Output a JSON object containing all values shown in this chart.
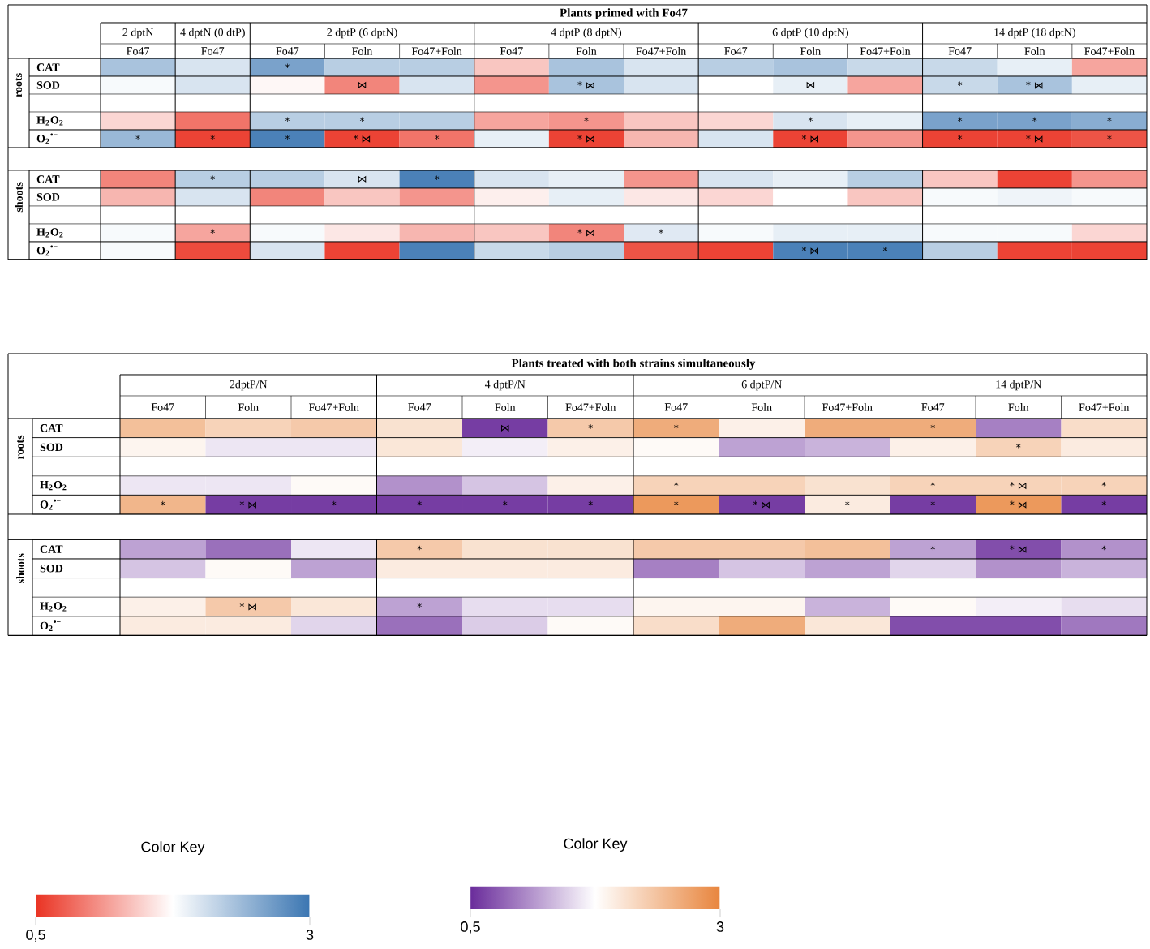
{
  "chart_data": [
    {
      "type": "heatmap",
      "title": "Plants primed with Fo47",
      "annotations": [
        "2 dptN",
        "4 dptN (0 dtP)",
        "2 dptP (6 dptN)",
        "4 dptP (8 dptN)",
        "6 dptP (10 dptN)",
        "14 dptP (18 dptN)"
      ],
      "categories": [
        "Fo47",
        "Fo47",
        "Fo47",
        "Foln",
        "Fo47+Foln",
        "Fo47",
        "Foln",
        "Fo47+Foln",
        "Fo47",
        "Foln",
        "Fo47+Foln",
        "Fo47",
        "Foln",
        "Fo47+Foln"
      ],
      "y_categories": [
        "CAT",
        "SOD",
        "H$_{2}$O$_{2}$",
        "O$_{2}$$^{•−}$",
        "CAT",
        "SOD",
        "H$_{2}$O$_{2}$",
        "O$_{2}$$^{•−}$"
      ],
      "y2_categories": [
        null,
        "roots",
        null,
        null,
        null,
        "shoots",
        null,
        null
      ],
      "cells": [
        [
          2.3,
          2.0,
          2.6,
          2.2,
          2.2,
          1.4,
          2.3,
          2.0,
          2.2,
          2.3,
          2.1,
          2.1,
          1.9,
          1.2
        ],
        [
          1.8,
          2.0,
          1.7,
          1.0,
          2.0,
          1.1,
          2.3,
          2.0,
          1.75,
          1.9,
          1.2,
          2.1,
          2.3,
          1.9
        ],
        [
          1.5,
          0.9,
          2.2,
          2.2,
          2.2,
          1.2,
          1.1,
          1.4,
          1.5,
          2.0,
          1.9,
          2.6,
          2.6,
          2.5
        ],
        [
          2.4,
          0.6,
          2.9,
          0.6,
          0.9,
          1.9,
          0.6,
          1.3,
          2.0,
          0.6,
          1.1,
          0.6,
          0.6,
          0.7
        ],
        [
          1.0,
          2.2,
          2.2,
          2.0,
          2.9,
          2.0,
          1.9,
          1.1,
          2.0,
          1.9,
          2.2,
          1.4,
          0.6,
          1.1
        ],
        [
          1.3,
          2.0,
          1.0,
          1.4,
          1.1,
          1.65,
          1.9,
          1.6,
          1.5,
          1.75,
          1.4,
          1.8,
          1.85,
          1.8
        ],
        [
          1.8,
          1.2,
          1.8,
          1.6,
          1.3,
          1.4,
          1.0,
          1.95,
          1.8,
          1.9,
          1.9,
          1.8,
          1.8,
          1.5
        ],
        [
          1.8,
          0.65,
          2.0,
          0.6,
          2.9,
          2.1,
          2.2,
          0.7,
          0.6,
          2.9,
          2.9,
          2.2,
          0.6,
          0.6
        ]
      ],
      "cell_labels": [
        [
          null,
          null,
          "*",
          null,
          null,
          null,
          null,
          null,
          null,
          null,
          null,
          null,
          null,
          null
        ],
        [
          null,
          null,
          null,
          "⋈",
          null,
          null,
          "* ⋈",
          null,
          null,
          "⋈",
          null,
          "*",
          "* ⋈",
          null
        ],
        [
          null,
          null,
          "*",
          "*",
          null,
          null,
          "*",
          null,
          null,
          "*",
          null,
          "*",
          "*",
          "*"
        ],
        [
          "*",
          "*",
          "*",
          "* ⋈",
          "*",
          null,
          "* ⋈",
          null,
          null,
          "* ⋈",
          null,
          "*",
          "* ⋈",
          "*"
        ],
        [
          null,
          "*",
          null,
          "⋈",
          "*",
          null,
          null,
          null,
          null,
          null,
          null,
          null,
          null,
          null
        ],
        [
          null,
          null,
          null,
          null,
          null,
          null,
          null,
          null,
          null,
          null,
          null,
          null,
          null,
          null
        ],
        [
          null,
          "*",
          null,
          null,
          null,
          null,
          "* ⋈",
          "*",
          null,
          null,
          null,
          null,
          null,
          null
        ],
        [
          null,
          null,
          null,
          null,
          null,
          null,
          null,
          null,
          null,
          "* ⋈",
          "*",
          null,
          null,
          null
        ]
      ],
      "clabel": "Color Key",
      "clim": [
        0.5,
        3
      ],
      "cticks": [
        {
          "value": 0.5,
          "label": "0,5"
        },
        3
      ],
      "colors": [
        "#ea3323",
        "#ffffff",
        "#3b76b2"
      ]
    },
    {
      "type": "heatmap",
      "title": "Plants treated with both strains simultaneously",
      "annotations": [
        "2dptP/N",
        "4 dptP/N",
        "6 dptP/N",
        "14 dptP/N"
      ],
      "categories": [
        "Fo47",
        "Foln",
        "Fo47+Foln",
        "Fo47",
        "Foln",
        "Fo47+Foln",
        "Fo47",
        "Foln",
        "Fo47+Foln",
        "Fo47",
        "Foln",
        "Fo47+Foln"
      ],
      "y_categories": [
        "CAT",
        "SOD",
        "H$_{2}$O$_{2}$",
        "O$_{2}$$^{•−}$",
        "CAT",
        "SOD",
        "H$_{2}$O$_{2}$",
        "O$_{2}$$^{•−}$"
      ],
      "y2_categories": [
        null,
        "roots",
        null,
        null,
        null,
        "shoots",
        null,
        null
      ],
      "cells": [
        [
          2.4,
          2.2,
          2.3,
          2.05,
          0.6,
          2.3,
          2.6,
          1.9,
          2.6,
          2.6,
          1.0,
          2.1
        ],
        [
          1.85,
          1.6,
          1.6,
          2.0,
          1.65,
          1.9,
          1.8,
          1.2,
          1.3,
          1.9,
          2.2,
          1.95
        ],
        [
          1.6,
          1.6,
          1.8,
          1.1,
          1.4,
          1.9,
          2.2,
          2.2,
          2.05,
          2.2,
          2.2,
          2.2
        ],
        [
          2.5,
          0.6,
          0.6,
          0.6,
          0.6,
          0.6,
          2.8,
          0.6,
          1.95,
          0.6,
          2.8,
          0.6
        ],
        [
          1.2,
          0.9,
          1.6,
          2.3,
          2.05,
          2.05,
          2.3,
          2.3,
          2.4,
          1.2,
          0.7,
          1.1
        ],
        [
          1.4,
          1.8,
          1.2,
          1.95,
          1.95,
          1.95,
          1.0,
          1.4,
          1.2,
          1.5,
          1.1,
          1.3
        ],
        [
          1.9,
          2.3,
          2.0,
          1.2,
          1.55,
          1.55,
          1.85,
          1.85,
          1.3,
          1.8,
          1.65,
          1.55
        ],
        [
          1.95,
          1.95,
          1.5,
          0.9,
          1.45,
          1.8,
          2.1,
          2.6,
          2.0,
          0.7,
          0.7,
          0.95
        ]
      ],
      "cell_labels": [
        [
          null,
          null,
          null,
          null,
          "⋈",
          "*",
          "*",
          null,
          null,
          "*",
          null,
          null
        ],
        [
          null,
          null,
          null,
          null,
          null,
          null,
          null,
          null,
          null,
          null,
          "*",
          null
        ],
        [
          null,
          null,
          null,
          null,
          null,
          null,
          "*",
          null,
          null,
          "*",
          "* ⋈",
          "*"
        ],
        [
          "*",
          "* ⋈",
          "*",
          "*",
          "*",
          "*",
          "*",
          "* ⋈",
          "*",
          "*",
          "* ⋈",
          "*"
        ],
        [
          null,
          null,
          null,
          "*",
          null,
          null,
          null,
          null,
          null,
          "*",
          "* ⋈",
          "*"
        ],
        [
          null,
          null,
          null,
          null,
          null,
          null,
          null,
          null,
          null,
          null,
          null,
          null
        ],
        [
          null,
          "* ⋈",
          null,
          "*",
          null,
          null,
          null,
          null,
          null,
          null,
          null,
          null
        ],
        [
          null,
          null,
          null,
          null,
          null,
          null,
          null,
          null,
          null,
          null,
          null,
          null
        ]
      ],
      "clabel": "Color Key",
      "clim": [
        0.5,
        3
      ],
      "cticks": [
        {
          "value": 0.5,
          "label": "0,5"
        },
        3
      ],
      "colors": [
        "#6a2c9b",
        "#ffffff",
        "#e8853d"
      ]
    }
  ]
}
